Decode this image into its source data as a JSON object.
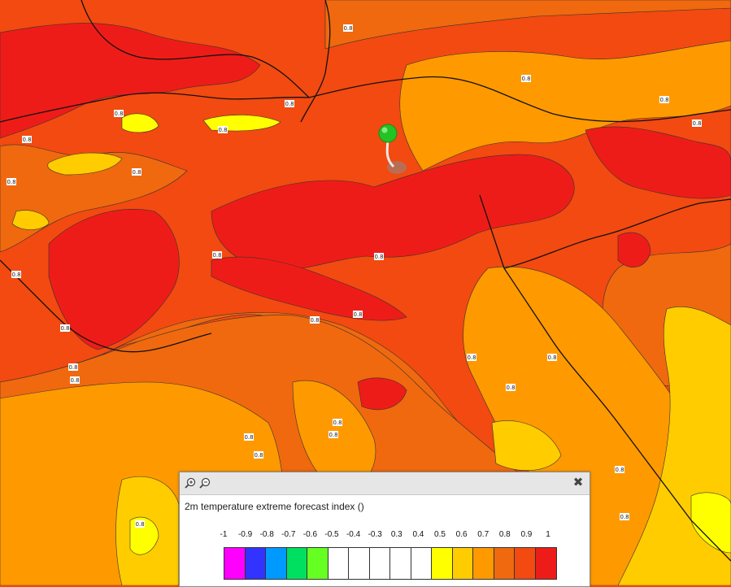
{
  "map": {
    "colors": {
      "level_05": "#ffff00",
      "level_06": "#ffcc00",
      "level_07": "#ff9900",
      "level_08": "#f0690e",
      "level_09": "#f24a10",
      "level_10": "#ee1c18",
      "border": "#1a1a1a",
      "marker": "#2ecc2e"
    },
    "contour_labels": [
      "0.8",
      "0.8",
      "0.8",
      "0.8",
      "0.8",
      "0.8",
      "0.8",
      "0.8",
      "0.8",
      "0.8",
      "0.8",
      "0.8",
      "0.8",
      "0.8",
      "0.8",
      "0.8",
      "0.8",
      "0.8",
      "0.8",
      "0.8",
      "0.8",
      "0.8",
      "0.8",
      "0.8",
      "0.8",
      "0.8",
      "0.8",
      "0.8"
    ]
  },
  "legend_panel": {
    "zoom_in_icon": "zoom-in-icon",
    "zoom_out_icon": "zoom-out-icon",
    "close_icon": "close-icon",
    "close_glyph": "✖",
    "title": "2m temperature extreme forecast index ()",
    "scale_labels": [
      "-1",
      "-0.9",
      "-0.8",
      "-0.7",
      "-0.6",
      "-0.5",
      "-0.4",
      "-0.3",
      "0.3",
      "0.4",
      "0.5",
      "0.6",
      "0.7",
      "0.8",
      "0.9",
      "1"
    ],
    "swatch_colors": [
      "#ff00ff",
      "#3333ff",
      "#0099ff",
      "#00e060",
      "#66ff22",
      "#ffffff",
      "#ffffff",
      "#ffffff",
      "#ffffff",
      "#ffffff",
      "#ffff00",
      "#ffcc00",
      "#ff9900",
      "#f0690e",
      "#f24a10",
      "#ee1c18"
    ]
  }
}
